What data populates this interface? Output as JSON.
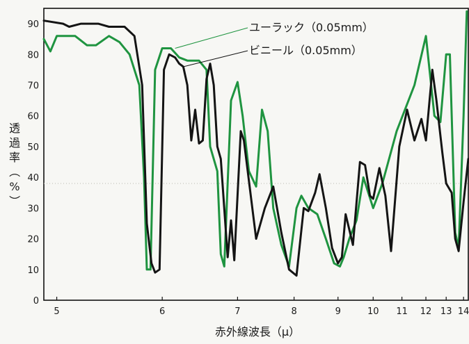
{
  "chart_data": {
    "type": "line",
    "title": "",
    "xlabel": "赤外線波長（μ）",
    "ylabel": "透過率（%）",
    "ylabel_chars": [
      "透",
      "過",
      "率",
      "（",
      "%",
      "）"
    ],
    "x_scale": "reciprocal",
    "xlim": [
      4.9,
      14.3
    ],
    "ylim": [
      0,
      95
    ],
    "x_ticks": [
      5,
      6,
      7,
      8,
      9,
      10,
      11,
      12,
      13,
      14
    ],
    "y_ticks": [
      0,
      10,
      20,
      30,
      40,
      50,
      60,
      70,
      80,
      90
    ],
    "grid": {
      "horizontal_at": 38,
      "style": "dotted"
    },
    "series": [
      {
        "name": "ユーラック（0.05mm）",
        "color": "#1f9440",
        "points": [
          [
            4.9,
            85
          ],
          [
            4.95,
            81
          ],
          [
            5.0,
            86
          ],
          [
            5.15,
            86
          ],
          [
            5.25,
            83
          ],
          [
            5.33,
            83
          ],
          [
            5.45,
            86
          ],
          [
            5.55,
            84
          ],
          [
            5.65,
            80
          ],
          [
            5.75,
            70
          ],
          [
            5.8,
            40
          ],
          [
            5.83,
            10
          ],
          [
            5.87,
            10
          ],
          [
            5.92,
            75
          ],
          [
            6.0,
            82
          ],
          [
            6.1,
            82
          ],
          [
            6.2,
            79
          ],
          [
            6.3,
            78
          ],
          [
            6.45,
            78
          ],
          [
            6.55,
            75
          ],
          [
            6.6,
            50
          ],
          [
            6.7,
            42
          ],
          [
            6.75,
            15
          ],
          [
            6.8,
            11
          ],
          [
            6.9,
            65
          ],
          [
            7.0,
            71
          ],
          [
            7.08,
            60
          ],
          [
            7.18,
            42
          ],
          [
            7.3,
            37
          ],
          [
            7.4,
            62
          ],
          [
            7.5,
            55
          ],
          [
            7.6,
            30
          ],
          [
            7.75,
            18
          ],
          [
            7.9,
            11
          ],
          [
            8.05,
            30
          ],
          [
            8.15,
            34
          ],
          [
            8.3,
            30
          ],
          [
            8.5,
            28
          ],
          [
            8.7,
            20
          ],
          [
            8.9,
            12
          ],
          [
            9.05,
            11
          ],
          [
            9.15,
            14
          ],
          [
            9.3,
            20
          ],
          [
            9.5,
            26
          ],
          [
            9.7,
            40
          ],
          [
            10.0,
            30
          ],
          [
            10.3,
            38
          ],
          [
            10.8,
            55
          ],
          [
            11.5,
            70
          ],
          [
            12.0,
            86
          ],
          [
            12.4,
            60
          ],
          [
            12.7,
            58
          ],
          [
            13.0,
            80
          ],
          [
            13.2,
            80
          ],
          [
            13.5,
            22
          ],
          [
            13.7,
            17
          ],
          [
            14.0,
            60
          ],
          [
            14.2,
            94
          ]
        ]
      },
      {
        "name": "ビニール（0.05mm）",
        "color": "#141414",
        "points": [
          [
            4.9,
            91
          ],
          [
            5.05,
            90
          ],
          [
            5.1,
            89
          ],
          [
            5.2,
            90
          ],
          [
            5.35,
            90
          ],
          [
            5.45,
            89
          ],
          [
            5.6,
            89
          ],
          [
            5.7,
            86
          ],
          [
            5.78,
            70
          ],
          [
            5.83,
            25
          ],
          [
            5.88,
            12
          ],
          [
            5.92,
            9
          ],
          [
            5.97,
            10
          ],
          [
            6.02,
            75
          ],
          [
            6.08,
            80
          ],
          [
            6.15,
            79
          ],
          [
            6.2,
            77
          ],
          [
            6.25,
            76
          ],
          [
            6.3,
            70
          ],
          [
            6.35,
            52
          ],
          [
            6.4,
            62
          ],
          [
            6.45,
            51
          ],
          [
            6.5,
            52
          ],
          [
            6.55,
            72
          ],
          [
            6.6,
            77
          ],
          [
            6.65,
            70
          ],
          [
            6.7,
            50
          ],
          [
            6.75,
            46
          ],
          [
            6.85,
            14
          ],
          [
            6.9,
            26
          ],
          [
            6.95,
            13
          ],
          [
            7.05,
            55
          ],
          [
            7.1,
            52
          ],
          [
            7.3,
            20
          ],
          [
            7.45,
            30
          ],
          [
            7.6,
            37
          ],
          [
            7.75,
            22
          ],
          [
            7.9,
            10
          ],
          [
            8.05,
            8
          ],
          [
            8.2,
            30
          ],
          [
            8.3,
            29
          ],
          [
            8.45,
            35
          ],
          [
            8.55,
            41
          ],
          [
            8.7,
            30
          ],
          [
            8.85,
            17
          ],
          [
            9.0,
            12
          ],
          [
            9.1,
            14
          ],
          [
            9.2,
            28
          ],
          [
            9.4,
            18
          ],
          [
            9.6,
            45
          ],
          [
            9.75,
            44
          ],
          [
            9.9,
            34
          ],
          [
            10.0,
            33
          ],
          [
            10.2,
            43
          ],
          [
            10.4,
            34
          ],
          [
            10.6,
            16
          ],
          [
            10.9,
            50
          ],
          [
            11.2,
            62
          ],
          [
            11.5,
            52
          ],
          [
            11.8,
            59
          ],
          [
            12.0,
            52
          ],
          [
            12.3,
            75
          ],
          [
            12.5,
            65
          ],
          [
            12.8,
            48
          ],
          [
            13.0,
            38
          ],
          [
            13.3,
            35
          ],
          [
            13.5,
            20
          ],
          [
            13.7,
            16
          ],
          [
            14.0,
            32
          ],
          [
            14.3,
            46
          ]
        ]
      }
    ]
  }
}
